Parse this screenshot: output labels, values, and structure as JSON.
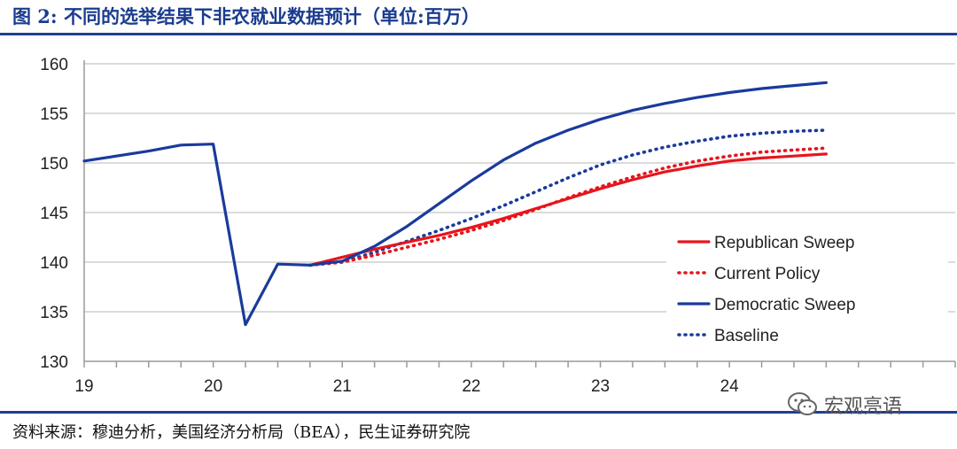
{
  "figure": {
    "title": "图 2:  不同的选举结果下非农就业数据预计（单位:百万）",
    "source": "资料来源：穆迪分析，美国经济分析局（BEA），民生证券研究院",
    "watermark": "宏观亮语",
    "watermark_icon": "wechat-icon"
  },
  "chart_data": {
    "type": "line",
    "xlabel": "",
    "ylabel": "",
    "xlim": [
      19,
      25.75
    ],
    "ylim": [
      130,
      160
    ],
    "x_ticks": [
      "19",
      "20",
      "21",
      "22",
      "23",
      "24"
    ],
    "y_ticks": [
      "160",
      "155",
      "150",
      "145",
      "140",
      "135",
      "130"
    ],
    "grid": "horizontal",
    "legend_position": "bottom-right",
    "series": [
      {
        "name": "Republican Sweep",
        "color": "#e8141c",
        "style": "solid",
        "points": [
          [
            20.75,
            139.7
          ],
          [
            21.0,
            140.5
          ],
          [
            21.25,
            141.3
          ],
          [
            21.5,
            142.0
          ],
          [
            21.75,
            142.7
          ],
          [
            22.0,
            143.5
          ],
          [
            22.25,
            144.4
          ],
          [
            22.5,
            145.4
          ],
          [
            22.75,
            146.4
          ],
          [
            23.0,
            147.4
          ],
          [
            23.25,
            148.3
          ],
          [
            23.5,
            149.1
          ],
          [
            23.75,
            149.7
          ],
          [
            24.0,
            150.2
          ],
          [
            24.25,
            150.5
          ],
          [
            24.5,
            150.7
          ],
          [
            24.75,
            150.9
          ]
        ]
      },
      {
        "name": "Current Policy",
        "color": "#e8141c",
        "style": "dotted",
        "points": [
          [
            20.75,
            139.7
          ],
          [
            21.0,
            140.0
          ],
          [
            21.25,
            140.7
          ],
          [
            21.5,
            141.5
          ],
          [
            21.75,
            142.3
          ],
          [
            22.0,
            143.2
          ],
          [
            22.25,
            144.2
          ],
          [
            22.5,
            145.3
          ],
          [
            22.75,
            146.5
          ],
          [
            23.0,
            147.6
          ],
          [
            23.25,
            148.6
          ],
          [
            23.5,
            149.5
          ],
          [
            23.75,
            150.2
          ],
          [
            24.0,
            150.7
          ],
          [
            24.25,
            151.1
          ],
          [
            24.5,
            151.3
          ],
          [
            24.75,
            151.5
          ]
        ]
      },
      {
        "name": "Democratic Sweep",
        "color": "#1a3a9c",
        "style": "solid",
        "points": [
          [
            19.0,
            150.2
          ],
          [
            19.5,
            151.2
          ],
          [
            19.75,
            151.8
          ],
          [
            20.0,
            151.9
          ],
          [
            20.25,
            133.7
          ],
          [
            20.5,
            139.8
          ],
          [
            20.75,
            139.7
          ],
          [
            21.0,
            140.1
          ],
          [
            21.25,
            141.6
          ],
          [
            21.5,
            143.6
          ],
          [
            21.75,
            145.9
          ],
          [
            22.0,
            148.2
          ],
          [
            22.25,
            150.3
          ],
          [
            22.5,
            152.0
          ],
          [
            22.75,
            153.3
          ],
          [
            23.0,
            154.4
          ],
          [
            23.25,
            155.3
          ],
          [
            23.5,
            156.0
          ],
          [
            23.75,
            156.6
          ],
          [
            24.0,
            157.1
          ],
          [
            24.25,
            157.5
          ],
          [
            24.5,
            157.8
          ],
          [
            24.75,
            158.1
          ]
        ]
      },
      {
        "name": "Baseline",
        "color": "#1a3a9c",
        "style": "dotted",
        "points": [
          [
            20.75,
            139.7
          ],
          [
            21.0,
            140.0
          ],
          [
            21.25,
            141.0
          ],
          [
            21.5,
            142.1
          ],
          [
            21.75,
            143.2
          ],
          [
            22.0,
            144.4
          ],
          [
            22.25,
            145.7
          ],
          [
            22.5,
            147.1
          ],
          [
            22.75,
            148.5
          ],
          [
            23.0,
            149.8
          ],
          [
            23.25,
            150.8
          ],
          [
            23.5,
            151.6
          ],
          [
            23.75,
            152.2
          ],
          [
            24.0,
            152.7
          ],
          [
            24.25,
            153.0
          ],
          [
            24.5,
            153.2
          ],
          [
            24.75,
            153.3
          ]
        ]
      }
    ]
  }
}
